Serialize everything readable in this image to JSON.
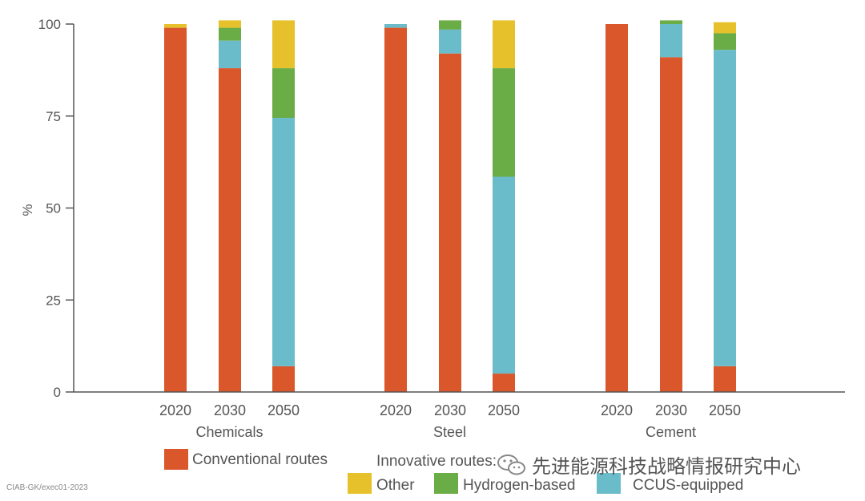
{
  "chart_data": {
    "type": "bar",
    "stacked": true,
    "ylabel": "%",
    "ylim": [
      0,
      100
    ],
    "yticks": [
      0,
      25,
      50,
      75,
      100
    ],
    "grid": false,
    "groups": [
      {
        "name": "Chemicals",
        "years": [
          "2020",
          "2030",
          "2050"
        ]
      },
      {
        "name": "Steel",
        "years": [
          "2020",
          "2030",
          "2050"
        ]
      },
      {
        "name": "Cement",
        "years": [
          "2020",
          "2030",
          "2050"
        ]
      }
    ],
    "categories": [
      "Chemicals 2020",
      "Chemicals 2030",
      "Chemicals 2050",
      "Steel 2020",
      "Steel 2030",
      "Steel 2050",
      "Cement 2020",
      "Cement 2030",
      "Cement 2050"
    ],
    "series": [
      {
        "name": "Conventional routes",
        "color": "#d9572b",
        "values": [
          99,
          88,
          7,
          99,
          92,
          5,
          100,
          91,
          7
        ]
      },
      {
        "name": "CCUS-equipped",
        "color": "#6bbccb",
        "values": [
          0,
          7.5,
          67.5,
          1,
          6.5,
          53.5,
          0,
          9,
          86
        ]
      },
      {
        "name": "Hydrogen-based",
        "color": "#6aac46",
        "values": [
          0,
          3.5,
          13.5,
          0,
          2.5,
          29.5,
          0,
          1,
          4.5
        ]
      },
      {
        "name": "Other",
        "color": "#e6c12b",
        "values": [
          1,
          2,
          13,
          0,
          0,
          13,
          0,
          0,
          3
        ]
      }
    ]
  },
  "legend": {
    "conventional_label": "Conventional routes",
    "innovative_label": "Innovative routes:",
    "other_label": "Other",
    "hydrogen_label": "Hydrogen-based",
    "ccus_label": "CCUS-equipped"
  },
  "colors": {
    "conventional": "#d9572b",
    "ccus": "#6bbccb",
    "hydrogen": "#6aac46",
    "other": "#e6c12b",
    "axis": "#555555"
  },
  "footnote": "CIAB-GK/exec01-2023",
  "watermark": "先进能源科技战略情报研究中心"
}
